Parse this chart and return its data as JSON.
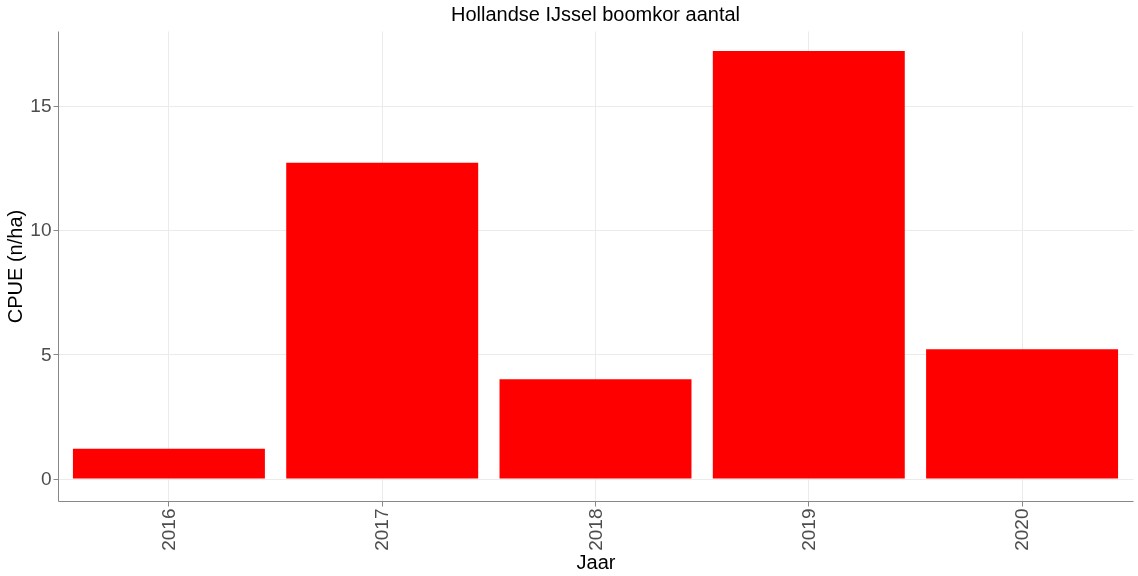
{
  "chart_data": {
    "type": "bar",
    "title": "Hollandse IJssel boomkor aantal",
    "xlabel": "Jaar",
    "ylabel": "CPUE (n/ha)",
    "categories": [
      "2016",
      "2017",
      "2018",
      "2019",
      "2020"
    ],
    "values": [
      1.2,
      12.7,
      4.0,
      17.2,
      5.2
    ],
    "color": "#ff0000",
    "ylim": [
      -0.9,
      18.0
    ],
    "yticks": [
      0,
      5,
      10,
      15
    ],
    "grid": true
  }
}
